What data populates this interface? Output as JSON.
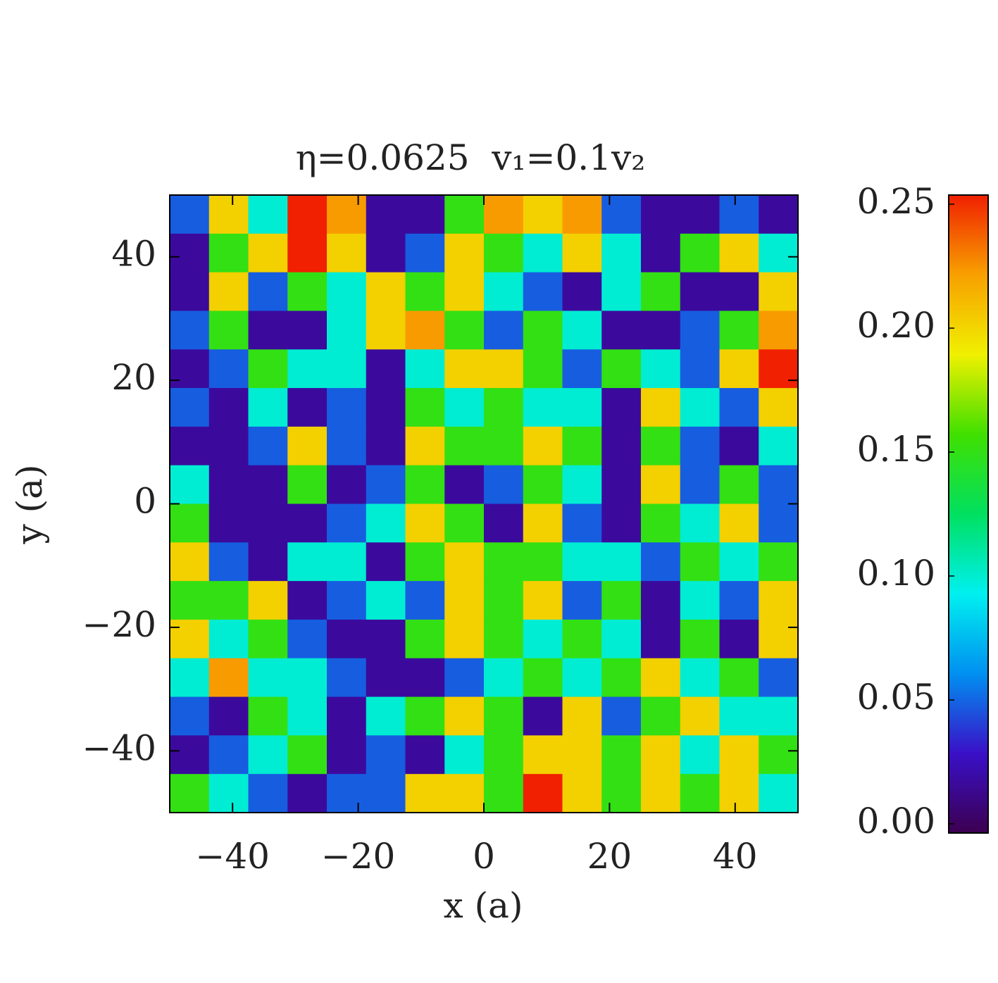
{
  "chart_data": {
    "type": "heatmap",
    "title": "η=0.0625  v₁=0.1v₂",
    "xlabel": "x (a)",
    "ylabel": "y (a)",
    "xlim": [
      -50,
      50
    ],
    "ylim": [
      -50,
      50
    ],
    "xticks": [
      {
        "value": -40,
        "label": "−40"
      },
      {
        "value": -20,
        "label": "−20"
      },
      0,
      20,
      40
    ],
    "yticks": [
      {
        "value": -40,
        "label": "−40"
      },
      {
        "value": -20,
        "label": "−20"
      },
      0,
      20,
      40
    ],
    "clim": [
      0,
      0.25
    ],
    "cticks": [
      {
        "value": 0,
        "label": "0.00"
      },
      {
        "value": 0.05,
        "label": "0.05"
      },
      {
        "value": 0.1,
        "label": "0.10"
      },
      {
        "value": 0.15,
        "label": "0.15"
      },
      {
        "value": 0.2,
        "label": "0.20"
      },
      {
        "value": 0.25,
        "label": "0.25"
      }
    ],
    "colormap": [
      "#3c0050",
      "#3a10c8",
      "#0090f0",
      "#00f0f0",
      "#00e060",
      "#40e000",
      "#f0f000",
      "#f8a000",
      "#f02000"
    ],
    "z": [
      [
        0.05,
        0.2,
        0.1,
        0.25,
        0.22,
        0.02,
        0.02,
        0.15,
        0.22,
        0.2,
        0.22,
        0.05,
        0.02,
        0.02,
        0.05,
        0.02
      ],
      [
        0.02,
        0.15,
        0.2,
        0.25,
        0.2,
        0.02,
        0.05,
        0.2,
        0.15,
        0.1,
        0.2,
        0.1,
        0.02,
        0.15,
        0.2,
        0.1
      ],
      [
        0.02,
        0.2,
        0.05,
        0.15,
        0.1,
        0.2,
        0.15,
        0.2,
        0.1,
        0.05,
        0.02,
        0.1,
        0.15,
        0.02,
        0.02,
        0.2
      ],
      [
        0.05,
        0.15,
        0.02,
        0.02,
        0.1,
        0.2,
        0.22,
        0.15,
        0.05,
        0.15,
        0.1,
        0.02,
        0.02,
        0.05,
        0.15,
        0.22
      ],
      [
        0.02,
        0.05,
        0.15,
        0.1,
        0.1,
        0.02,
        0.1,
        0.2,
        0.2,
        0.15,
        0.05,
        0.15,
        0.1,
        0.05,
        0.2,
        0.25
      ],
      [
        0.05,
        0.02,
        0.1,
        0.02,
        0.05,
        0.02,
        0.15,
        0.1,
        0.15,
        0.1,
        0.1,
        0.02,
        0.2,
        0.1,
        0.05,
        0.2
      ],
      [
        0.02,
        0.02,
        0.05,
        0.2,
        0.05,
        0.02,
        0.2,
        0.15,
        0.15,
        0.2,
        0.15,
        0.02,
        0.15,
        0.05,
        0.02,
        0.1
      ],
      [
        0.1,
        0.02,
        0.02,
        0.15,
        0.02,
        0.05,
        0.15,
        0.02,
        0.05,
        0.15,
        0.1,
        0.02,
        0.2,
        0.05,
        0.15,
        0.05
      ],
      [
        0.15,
        0.02,
        0.02,
        0.02,
        0.05,
        0.1,
        0.2,
        0.15,
        0.02,
        0.2,
        0.05,
        0.02,
        0.15,
        0.1,
        0.2,
        0.05
      ],
      [
        0.2,
        0.05,
        0.02,
        0.1,
        0.1,
        0.02,
        0.15,
        0.2,
        0.15,
        0.15,
        0.1,
        0.1,
        0.05,
        0.15,
        0.1,
        0.15
      ],
      [
        0.15,
        0.15,
        0.2,
        0.02,
        0.05,
        0.1,
        0.05,
        0.2,
        0.15,
        0.2,
        0.05,
        0.15,
        0.02,
        0.1,
        0.05,
        0.2
      ],
      [
        0.2,
        0.1,
        0.15,
        0.05,
        0.02,
        0.02,
        0.15,
        0.2,
        0.15,
        0.1,
        0.15,
        0.1,
        0.02,
        0.15,
        0.02,
        0.2
      ],
      [
        0.1,
        0.22,
        0.1,
        0.1,
        0.05,
        0.02,
        0.02,
        0.05,
        0.1,
        0.15,
        0.1,
        0.15,
        0.2,
        0.1,
        0.15,
        0.05
      ],
      [
        0.05,
        0.02,
        0.15,
        0.1,
        0.02,
        0.1,
        0.15,
        0.2,
        0.15,
        0.02,
        0.2,
        0.05,
        0.15,
        0.2,
        0.1,
        0.1
      ],
      [
        0.02,
        0.05,
        0.1,
        0.15,
        0.02,
        0.05,
        0.02,
        0.1,
        0.15,
        0.2,
        0.2,
        0.15,
        0.2,
        0.1,
        0.2,
        0.15
      ],
      [
        0.15,
        0.1,
        0.05,
        0.02,
        0.05,
        0.05,
        0.2,
        0.2,
        0.15,
        0.25,
        0.2,
        0.15,
        0.2,
        0.15,
        0.2,
        0.1
      ]
    ]
  }
}
